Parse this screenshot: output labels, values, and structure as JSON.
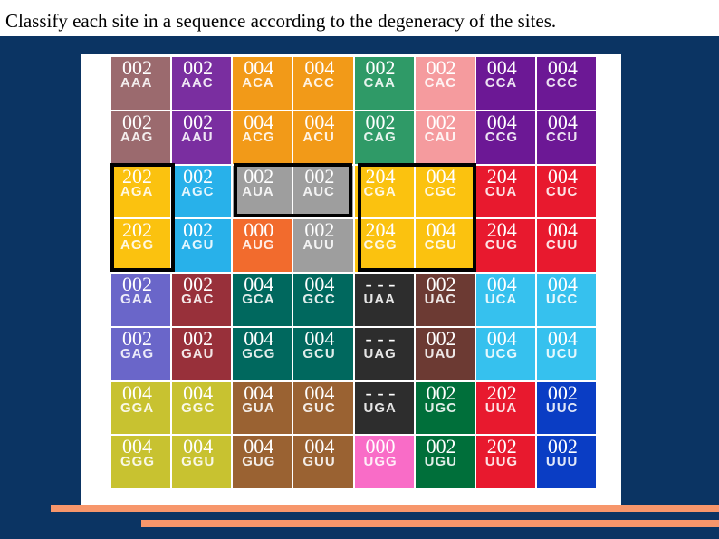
{
  "title": "Classify each site in a sequence according to the degeneracy of the sites.",
  "rows": [
    [
      [
        "002",
        "AAA",
        "#9b6a6e"
      ],
      [
        "002",
        "AAC",
        "#7a2ea0"
      ],
      [
        "004",
        "ACA",
        "#f29a18"
      ],
      [
        "004",
        "ACC",
        "#f29a18"
      ],
      [
        "002",
        "CAA",
        "#2f9a67"
      ],
      [
        "002",
        "CAC",
        "#f59b9e"
      ],
      [
        "004",
        "CCA",
        "#6c1895"
      ],
      [
        "004",
        "CCC",
        "#6c1895"
      ]
    ],
    [
      [
        "002",
        "AAG",
        "#9b6a6e"
      ],
      [
        "002",
        "AAU",
        "#7a2ea0"
      ],
      [
        "004",
        "ACG",
        "#f29a18"
      ],
      [
        "004",
        "ACU",
        "#f29a18"
      ],
      [
        "002",
        "CAG",
        "#2f9a67"
      ],
      [
        "002",
        "CAU",
        "#f59b9e"
      ],
      [
        "004",
        "CCG",
        "#6c1895"
      ],
      [
        "004",
        "CCU",
        "#6c1895"
      ]
    ],
    [
      [
        "202",
        "AGA",
        "#fbc20f"
      ],
      [
        "002",
        "AGC",
        "#28b1ea"
      ],
      [
        "002",
        "AUA",
        "#9e9e9e"
      ],
      [
        "002",
        "AUC",
        "#9e9e9e"
      ],
      [
        "204",
        "CGA",
        "#fbc20f"
      ],
      [
        "004",
        "CGC",
        "#fbc20f"
      ],
      [
        "204",
        "CUA",
        "#e8192e"
      ],
      [
        "004",
        "CUC",
        "#e8192e"
      ]
    ],
    [
      [
        "202",
        "AGG",
        "#fbc20f"
      ],
      [
        "002",
        "AGU",
        "#28b1ea"
      ],
      [
        "000",
        "AUG",
        "#f26b2d"
      ],
      [
        "002",
        "AUU",
        "#9e9e9e"
      ],
      [
        "204",
        "CGG",
        "#fbc20f"
      ],
      [
        "004",
        "CGU",
        "#fbc20f"
      ],
      [
        "204",
        "CUG",
        "#e8192e"
      ],
      [
        "004",
        "CUU",
        "#e8192e"
      ]
    ],
    [
      [
        "002",
        "GAA",
        "#6a66c9"
      ],
      [
        "002",
        "GAC",
        "#98303a"
      ],
      [
        "004",
        "GCA",
        "#00685e"
      ],
      [
        "004",
        "GCC",
        "#00685e"
      ],
      [
        "- - -",
        "UAA",
        "#2d2d2d"
      ],
      [
        "002",
        "UAC",
        "#6c3a33"
      ],
      [
        "004",
        "UCA",
        "#36c1ee"
      ],
      [
        "004",
        "UCC",
        "#36c1ee"
      ]
    ],
    [
      [
        "002",
        "GAG",
        "#6a66c9"
      ],
      [
        "002",
        "GAU",
        "#98303a"
      ],
      [
        "004",
        "GCG",
        "#00685e"
      ],
      [
        "004",
        "GCU",
        "#00685e"
      ],
      [
        "- - -",
        "UAG",
        "#2d2d2d"
      ],
      [
        "002",
        "UAU",
        "#6c3a33"
      ],
      [
        "004",
        "UCG",
        "#36c1ee"
      ],
      [
        "004",
        "UCU",
        "#36c1ee"
      ]
    ],
    [
      [
        "004",
        "GGA",
        "#c8c230"
      ],
      [
        "004",
        "GGC",
        "#c8c230"
      ],
      [
        "004",
        "GUA",
        "#9a6232"
      ],
      [
        "004",
        "GUC",
        "#9a6232"
      ],
      [
        "- - -",
        "UGA",
        "#2d2d2d"
      ],
      [
        "002",
        "UGC",
        "#006f3a"
      ],
      [
        "202",
        "UUA",
        "#e8192e"
      ],
      [
        "002",
        "UUC",
        "#0a3dc4"
      ]
    ],
    [
      [
        "004",
        "GGG",
        "#c8c230"
      ],
      [
        "004",
        "GGU",
        "#c8c230"
      ],
      [
        "004",
        "GUG",
        "#9a6232"
      ],
      [
        "004",
        "GUU",
        "#9a6232"
      ],
      [
        "000",
        "UGG",
        "#f96cc7"
      ],
      [
        "002",
        "UGU",
        "#006f3a"
      ],
      [
        "202",
        "UUG",
        "#e8192e"
      ],
      [
        "002",
        "UUU",
        "#0a3dc4"
      ]
    ]
  ]
}
